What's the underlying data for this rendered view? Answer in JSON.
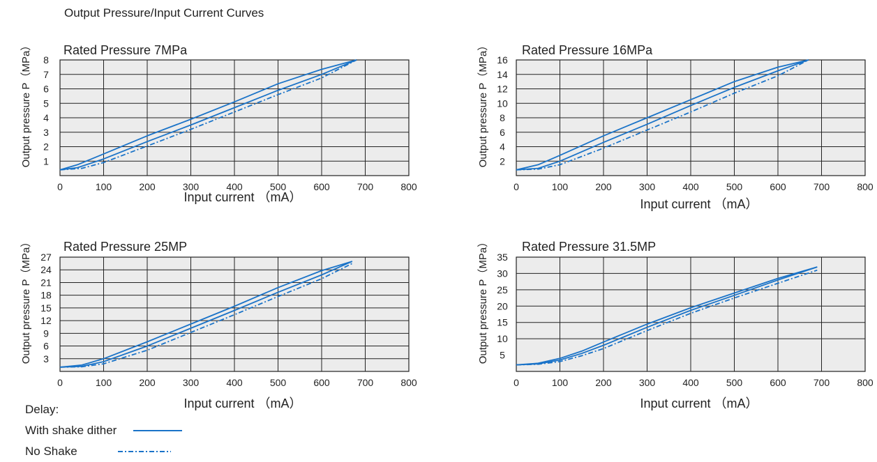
{
  "page_title": "Output Pressure/Input Current Curves",
  "legend": {
    "title": "Delay:",
    "items": [
      {
        "label": "With shake dither",
        "style": "solid",
        "color": "#1a73c8"
      },
      {
        "label": "No Shake",
        "style": "dashdot",
        "color": "#1a73c8"
      }
    ]
  },
  "chart_data": [
    {
      "type": "line",
      "title": "Rated Pressure 7MPa",
      "xlabel": "Input current （mA）",
      "ylabel": "Output pressure P（MPa）",
      "xlim": [
        0,
        800
      ],
      "ylim": [
        0,
        8
      ],
      "xticks": [
        0,
        100,
        200,
        300,
        400,
        500,
        600,
        700,
        800
      ],
      "yticks": [
        1,
        2,
        3,
        4,
        5,
        6,
        7,
        8
      ],
      "x_grid": [
        0,
        100,
        200,
        300,
        400,
        500,
        600,
        700,
        800
      ],
      "y_grid": [
        0,
        1,
        2,
        3,
        4,
        5,
        6,
        7,
        8
      ],
      "grid": true,
      "series": [
        {
          "style": "solid",
          "x": [
            0,
            40,
            100,
            200,
            300,
            400,
            500,
            600,
            680
          ],
          "y": [
            0.4,
            0.75,
            1.5,
            2.75,
            3.9,
            5.1,
            6.35,
            7.35,
            8.0
          ]
        },
        {
          "style": "solid",
          "x": [
            0,
            40,
            100,
            200,
            300,
            400,
            500,
            600,
            680
          ],
          "y": [
            0.4,
            0.55,
            1.15,
            2.35,
            3.5,
            4.7,
            5.9,
            7.0,
            8.0
          ]
        },
        {
          "style": "dashdot",
          "x": [
            0,
            50,
            100,
            200,
            300,
            400,
            500,
            600,
            680
          ],
          "y": [
            0.4,
            0.5,
            0.9,
            2.05,
            3.2,
            4.4,
            5.6,
            6.75,
            8.0
          ]
        }
      ]
    },
    {
      "type": "line",
      "title": "Rated Pressure 16MPa",
      "xlabel": "Input current （mA）",
      "ylabel": "Output pressure P（MPa）",
      "xlim": [
        0,
        800
      ],
      "ylim": [
        0,
        16
      ],
      "xticks": [
        0,
        100,
        200,
        300,
        400,
        500,
        600,
        700,
        800
      ],
      "yticks": [
        2,
        4,
        6,
        8,
        10,
        12,
        14,
        16
      ],
      "x_grid": [
        0,
        100,
        200,
        300,
        400,
        500,
        600,
        700,
        800
      ],
      "y_grid": [
        0,
        2,
        4,
        6,
        8,
        10,
        12,
        14,
        16
      ],
      "grid": true,
      "series": [
        {
          "style": "solid",
          "x": [
            0,
            50,
            100,
            200,
            300,
            400,
            500,
            600,
            670
          ],
          "y": [
            0.8,
            1.5,
            2.8,
            5.5,
            8.0,
            10.5,
            13.0,
            15.0,
            16.0
          ]
        },
        {
          "style": "solid",
          "x": [
            0,
            50,
            100,
            200,
            300,
            400,
            500,
            600,
            670
          ],
          "y": [
            0.8,
            1.0,
            2.0,
            4.6,
            7.1,
            9.7,
            12.2,
            14.5,
            16.0
          ]
        },
        {
          "style": "dashdot",
          "x": [
            0,
            50,
            100,
            200,
            300,
            400,
            500,
            600,
            670
          ],
          "y": [
            0.8,
            0.9,
            1.5,
            3.8,
            6.3,
            8.8,
            11.4,
            13.8,
            16.0
          ]
        }
      ]
    },
    {
      "type": "line",
      "title": "Rated Pressure  25MP",
      "xlabel": "Input current （mA）",
      "ylabel": "Output pressure P（MPa）",
      "xlim": [
        0,
        800
      ],
      "ylim": [
        0,
        27
      ],
      "xticks": [
        0,
        100,
        200,
        300,
        400,
        500,
        600,
        700,
        800
      ],
      "yticks": [
        3,
        6,
        9,
        12,
        15,
        18,
        21,
        24,
        27
      ],
      "x_grid": [
        0,
        100,
        200,
        300,
        400,
        500,
        600,
        700,
        800
      ],
      "y_grid": [
        0,
        3,
        6,
        9,
        12,
        15,
        18,
        21,
        24,
        27
      ],
      "grid": true,
      "series": [
        {
          "style": "solid",
          "x": [
            0,
            50,
            100,
            200,
            300,
            400,
            500,
            600,
            670
          ],
          "y": [
            1.0,
            1.5,
            3.0,
            7.0,
            11.2,
            15.4,
            19.8,
            23.8,
            26.0
          ]
        },
        {
          "style": "solid",
          "x": [
            0,
            50,
            100,
            200,
            300,
            400,
            500,
            600,
            670
          ],
          "y": [
            1.0,
            1.2,
            2.3,
            6.0,
            10.2,
            14.4,
            18.7,
            22.8,
            26.0
          ]
        },
        {
          "style": "dashdot",
          "x": [
            0,
            50,
            100,
            200,
            300,
            400,
            500,
            600,
            670
          ],
          "y": [
            1.0,
            1.1,
            1.8,
            5.0,
            9.2,
            13.4,
            17.7,
            21.9,
            25.5
          ]
        }
      ]
    },
    {
      "type": "line",
      "title": "Rated Pressure 31.5MP",
      "xlabel": "Input current （mA）",
      "ylabel": "Output pressure P（MPa）",
      "xlim": [
        0,
        800
      ],
      "ylim": [
        0,
        35
      ],
      "xticks": [
        0,
        100,
        200,
        300,
        400,
        500,
        600,
        700,
        800
      ],
      "yticks": [
        5,
        10,
        15,
        20,
        25,
        30,
        35
      ],
      "x_grid": [
        0,
        100,
        200,
        300,
        400,
        500,
        600,
        700,
        800
      ],
      "y_grid": [
        0,
        10,
        15,
        20,
        25,
        30,
        35
      ],
      "grid": true,
      "series": [
        {
          "style": "solid",
          "x": [
            0,
            50,
            100,
            150,
            200,
            300,
            400,
            500,
            600,
            690
          ],
          "y": [
            2.0,
            2.5,
            4.0,
            6.2,
            9.0,
            14.5,
            19.5,
            24.0,
            28.5,
            32.0
          ]
        },
        {
          "style": "solid",
          "x": [
            0,
            50,
            100,
            150,
            200,
            300,
            400,
            500,
            600,
            690
          ],
          "y": [
            2.0,
            2.3,
            3.5,
            5.5,
            8.0,
            13.5,
            18.7,
            23.3,
            28.0,
            32.0
          ]
        },
        {
          "style": "dashdot",
          "x": [
            0,
            50,
            100,
            150,
            200,
            300,
            400,
            500,
            600,
            690
          ],
          "y": [
            2.0,
            2.2,
            3.0,
            4.8,
            7.0,
            12.5,
            17.8,
            22.5,
            27.0,
            31.0
          ]
        }
      ]
    }
  ],
  "colors": {
    "line": "#1a73c8",
    "plot_bg": "#ececec",
    "grid": "#222222"
  }
}
